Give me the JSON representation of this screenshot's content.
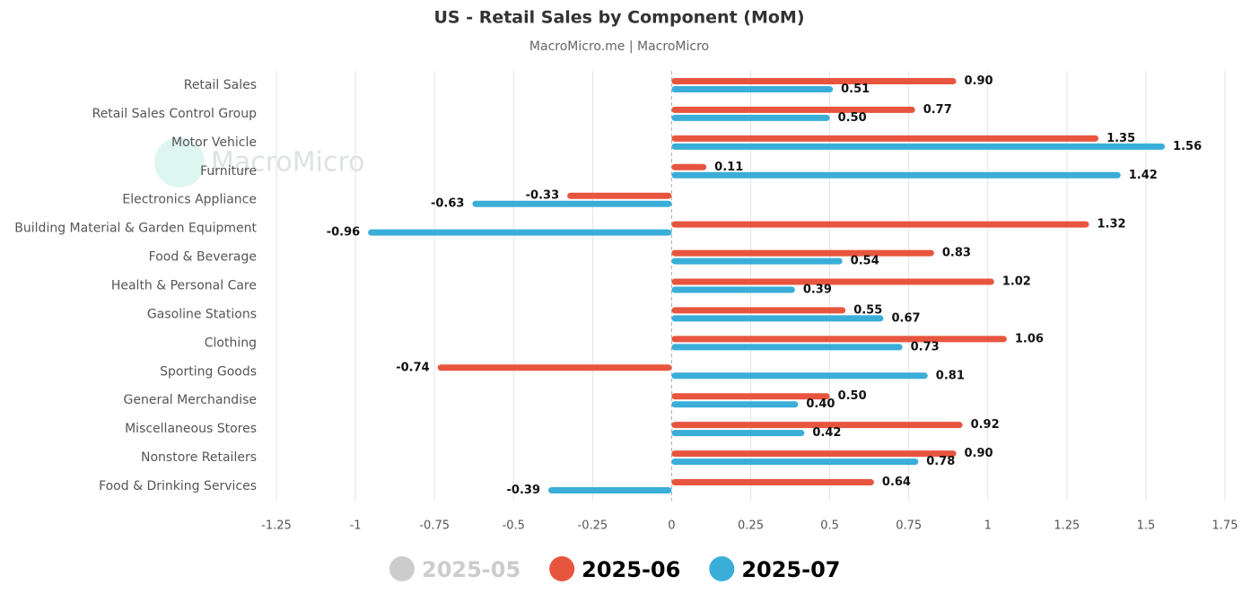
{
  "chart_data": {
    "type": "hbar",
    "title": "US - Retail Sales by Component (MoM)",
    "subtitle": "MacroMicro.me | MacroMicro",
    "watermark": "MacroMicro",
    "categories": [
      "Retail Sales",
      "Retail Sales Control Group",
      "Motor Vehicle",
      "Furniture",
      "Electronics Appliance",
      "Building Material & Garden Equipment",
      "Food & Beverage",
      "Health & Personal Care",
      "Gasoline Stations",
      "Clothing",
      "Sporting Goods",
      "General Merchandise",
      "Miscellaneous Stores",
      "Nonstore Retailers",
      "Food & Drinking Services"
    ],
    "series": [
      {
        "name": "2025-06",
        "color": "#e8553f",
        "values": [
          0.9,
          0.77,
          1.35,
          0.11,
          -0.33,
          1.32,
          0.83,
          1.02,
          0.55,
          1.06,
          -0.74,
          0.5,
          0.92,
          0.9,
          0.64
        ],
        "value_labels": [
          "0.90",
          "0.77",
          "1.35",
          "0.11",
          "-0.33",
          "1.32",
          "0.83",
          "1.02",
          "0.55",
          "1.06",
          "-0.74",
          "0.50",
          "0.92",
          "0.90",
          "0.64"
        ]
      },
      {
        "name": "2025-07",
        "color": "#3aaed8",
        "values": [
          0.51,
          0.5,
          1.56,
          1.42,
          -0.63,
          -0.96,
          0.54,
          0.39,
          0.67,
          0.73,
          0.81,
          0.4,
          0.42,
          0.78,
          -0.39
        ],
        "value_labels": [
          "0.51",
          "0.50",
          "1.56",
          "1.42",
          "-0.63",
          "-0.96",
          "0.54",
          "0.39",
          "0.67",
          "0.73",
          "0.81",
          "0.40",
          "0.42",
          "0.78",
          "-0.39"
        ]
      }
    ],
    "hidden_series": [
      {
        "name": "2025-05",
        "color": "#cccccc"
      }
    ],
    "xlim": [
      -1.25,
      1.75
    ],
    "xticks": [
      -1.25,
      -1,
      -0.75,
      -0.5,
      -0.25,
      0,
      0.25,
      0.5,
      0.75,
      1,
      1.25,
      1.5,
      1.75
    ],
    "grid": true,
    "legend": "bottom"
  }
}
